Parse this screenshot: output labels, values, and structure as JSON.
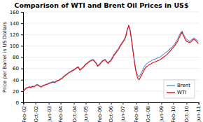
{
  "chart_data": {
    "type": "line",
    "title": "Comparison of WTI and Brent Oil Prices in US$",
    "ylabel": "Price per Barrel in US Dollars",
    "categories": [
      "Feb-02",
      null,
      null,
      null,
      null,
      null,
      null,
      null,
      "Oct-02",
      null,
      null,
      null,
      null,
      null,
      null,
      null,
      null,
      "Jun-03",
      null,
      null,
      null,
      null,
      null,
      null,
      null,
      "Feb-04",
      null,
      null,
      null,
      null,
      null,
      null,
      null,
      null,
      "Oct-04",
      null,
      null,
      null,
      null,
      null,
      null,
      null,
      "Jun-05",
      null,
      null,
      null,
      null,
      null,
      null,
      null,
      null,
      "Feb-06",
      null,
      null,
      null,
      null,
      null,
      null,
      null,
      "Oct-06",
      null,
      null,
      null,
      null,
      null,
      null,
      null,
      "Jun-07",
      null,
      null,
      null,
      null,
      null,
      null,
      null,
      null,
      "Feb-08",
      null,
      null,
      null,
      null,
      null,
      null,
      null,
      "Oct-08",
      null,
      null,
      null,
      null,
      null,
      null,
      null,
      null,
      "Jun-09",
      null,
      null,
      null,
      null,
      null,
      null,
      null,
      "Feb-10",
      null,
      null,
      null,
      null,
      null,
      null,
      null,
      null,
      "Oct-10",
      null,
      null,
      null,
      null,
      null,
      null,
      null,
      "Jun-11"
    ],
    "series": [
      {
        "name": "Brent",
        "color": "#5B9BD5",
        "values": [
          21,
          24,
          26,
          27,
          28,
          27,
          29,
          28,
          30,
          32,
          31,
          29,
          28,
          30,
          31,
          32,
          33,
          34,
          35,
          36,
          37,
          36,
          38,
          39,
          40,
          42,
          43,
          46,
          48,
          50,
          52,
          54,
          55,
          57,
          58,
          60,
          62,
          63,
          58,
          60,
          62,
          65,
          68,
          70,
          72,
          74,
          75,
          76,
          73,
          70,
          65,
          67,
          70,
          73,
          75,
          76,
          73,
          70,
          73,
          75,
          80,
          85,
          88,
          92,
          95,
          100,
          104,
          108,
          112,
          118,
          130,
          135,
          128,
          110,
          90,
          70,
          55,
          48,
          45,
          50,
          55,
          60,
          65,
          68,
          70,
          72,
          73,
          75,
          76,
          77,
          78,
          79,
          80,
          82,
          84,
          86,
          88,
          90,
          92,
          95,
          97,
          100,
          103,
          108,
          112,
          118,
          123,
          126,
          120,
          116,
          112,
          110,
          108,
          110,
          112,
          114,
          112,
          110,
          108
        ]
      },
      {
        "name": "WTI",
        "color": "#FF0000",
        "values": [
          20,
          23,
          25,
          26,
          27,
          26,
          28,
          27,
          29,
          31,
          30,
          28,
          27,
          29,
          30,
          31,
          32,
          33,
          34,
          35,
          36,
          35,
          37,
          38,
          39,
          41,
          42,
          45,
          47,
          49,
          51,
          53,
          54,
          56,
          57,
          59,
          61,
          62,
          57,
          59,
          61,
          64,
          67,
          69,
          71,
          73,
          74,
          75,
          72,
          69,
          64,
          66,
          69,
          72,
          74,
          75,
          72,
          69,
          72,
          74,
          78,
          83,
          86,
          90,
          93,
          98,
          102,
          106,
          110,
          116,
          128,
          136,
          126,
          108,
          88,
          68,
          53,
          43,
          40,
          45,
          50,
          55,
          60,
          63,
          65,
          67,
          68,
          70,
          71,
          72,
          73,
          74,
          75,
          77,
          79,
          81,
          83,
          85,
          88,
          91,
          94,
          97,
          100,
          104,
          108,
          114,
          120,
          124,
          118,
          112,
          108,
          107,
          106,
          107,
          110,
          112,
          110,
          107,
          104
        ]
      }
    ],
    "ylim": [
      0,
      160
    ],
    "yticks": [
      0,
      20,
      40,
      60,
      80,
      100,
      120,
      140,
      160
    ],
    "grid": true,
    "legend": "lower right"
  }
}
